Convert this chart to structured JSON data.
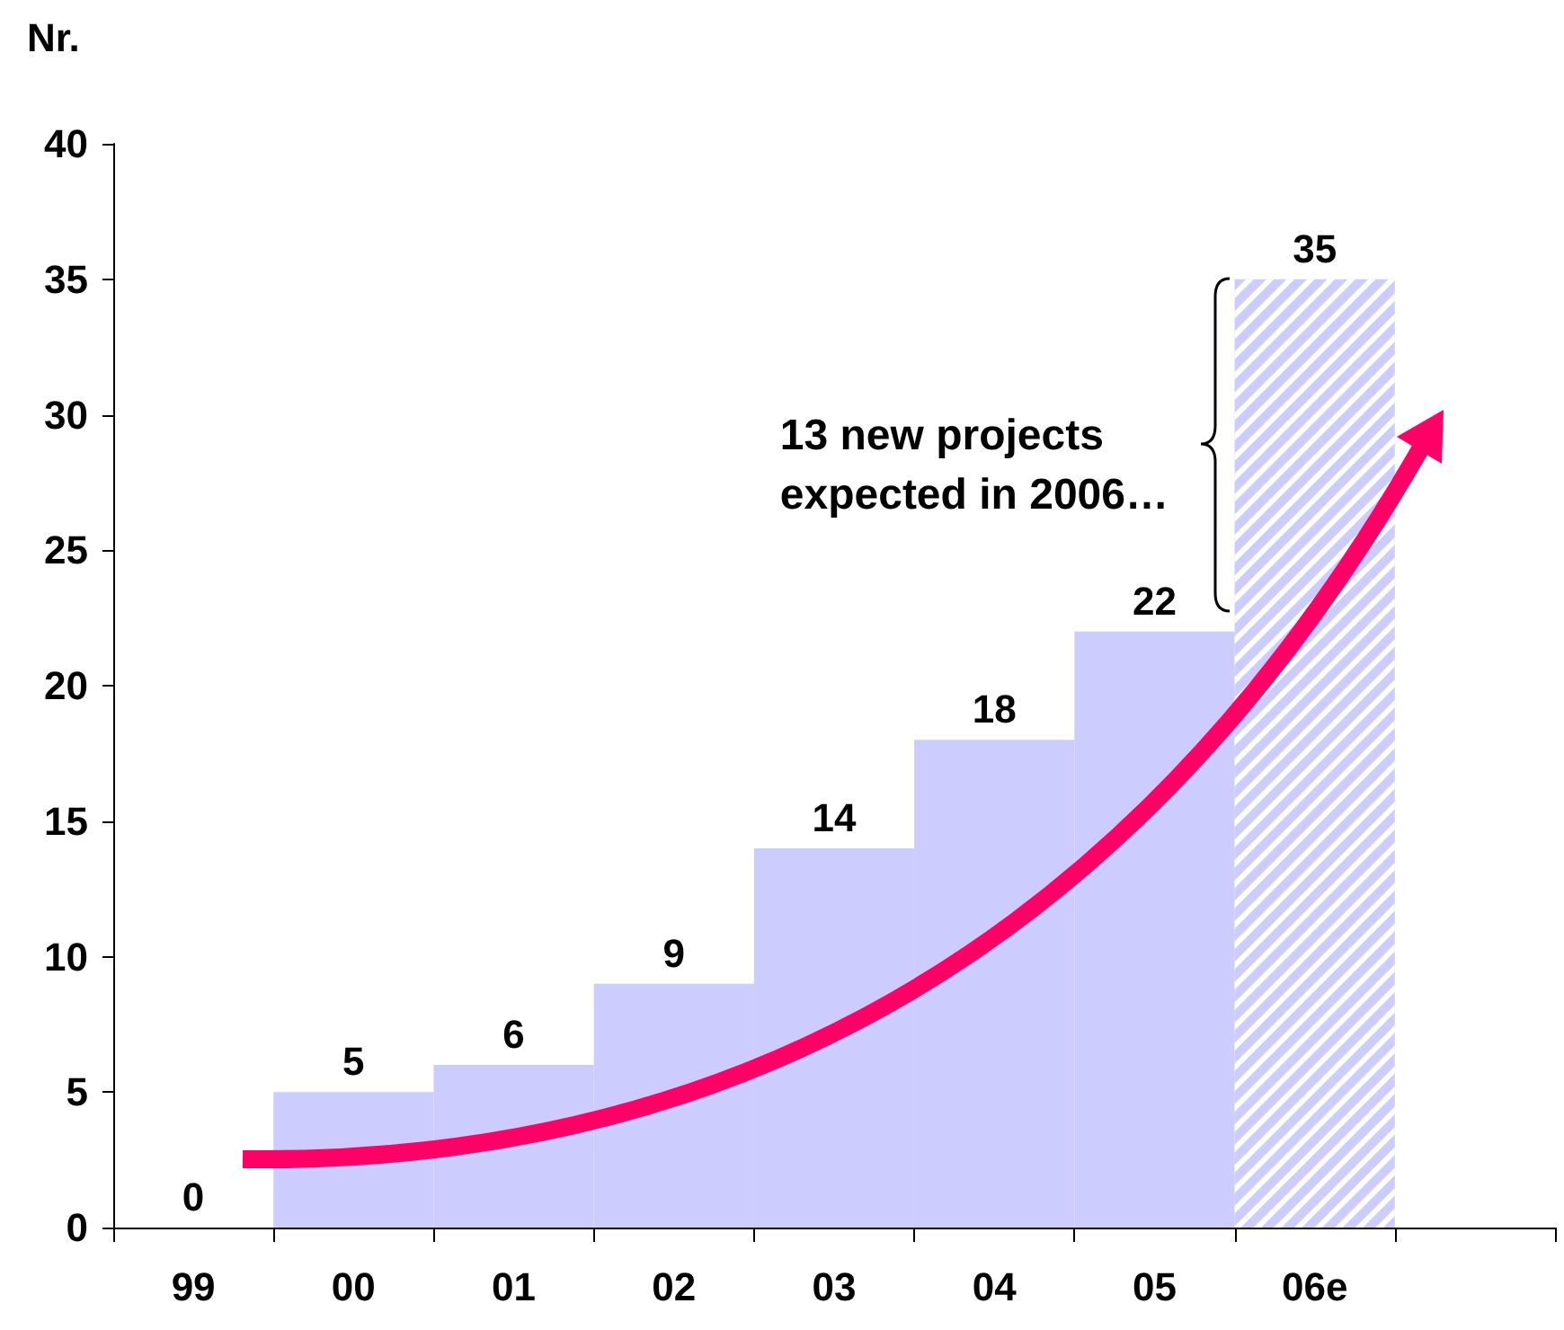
{
  "chart_data": {
    "type": "bar",
    "ylabel": "Nr.",
    "categories": [
      "99",
      "00",
      "01",
      "02",
      "03",
      "04",
      "05",
      "06e",
      null
    ],
    "series": [
      {
        "color": "#ccccff",
        "values": [
          0,
          5,
          6,
          9,
          14,
          18,
          22,
          null,
          null
        ]
      },
      {
        "color": "#ccccff",
        "values": [
          null,
          null,
          null,
          null,
          null,
          null,
          null,
          35,
          null
        ]
      }
    ],
    "ylim": [
      0,
      40
    ],
    "yticks": [
      0,
      5,
      10,
      15,
      20,
      25,
      30,
      35,
      40
    ],
    "grid": false,
    "data_labels": true,
    "annotations": [
      "13 new projects\nexpected in 2006…"
    ]
  }
}
